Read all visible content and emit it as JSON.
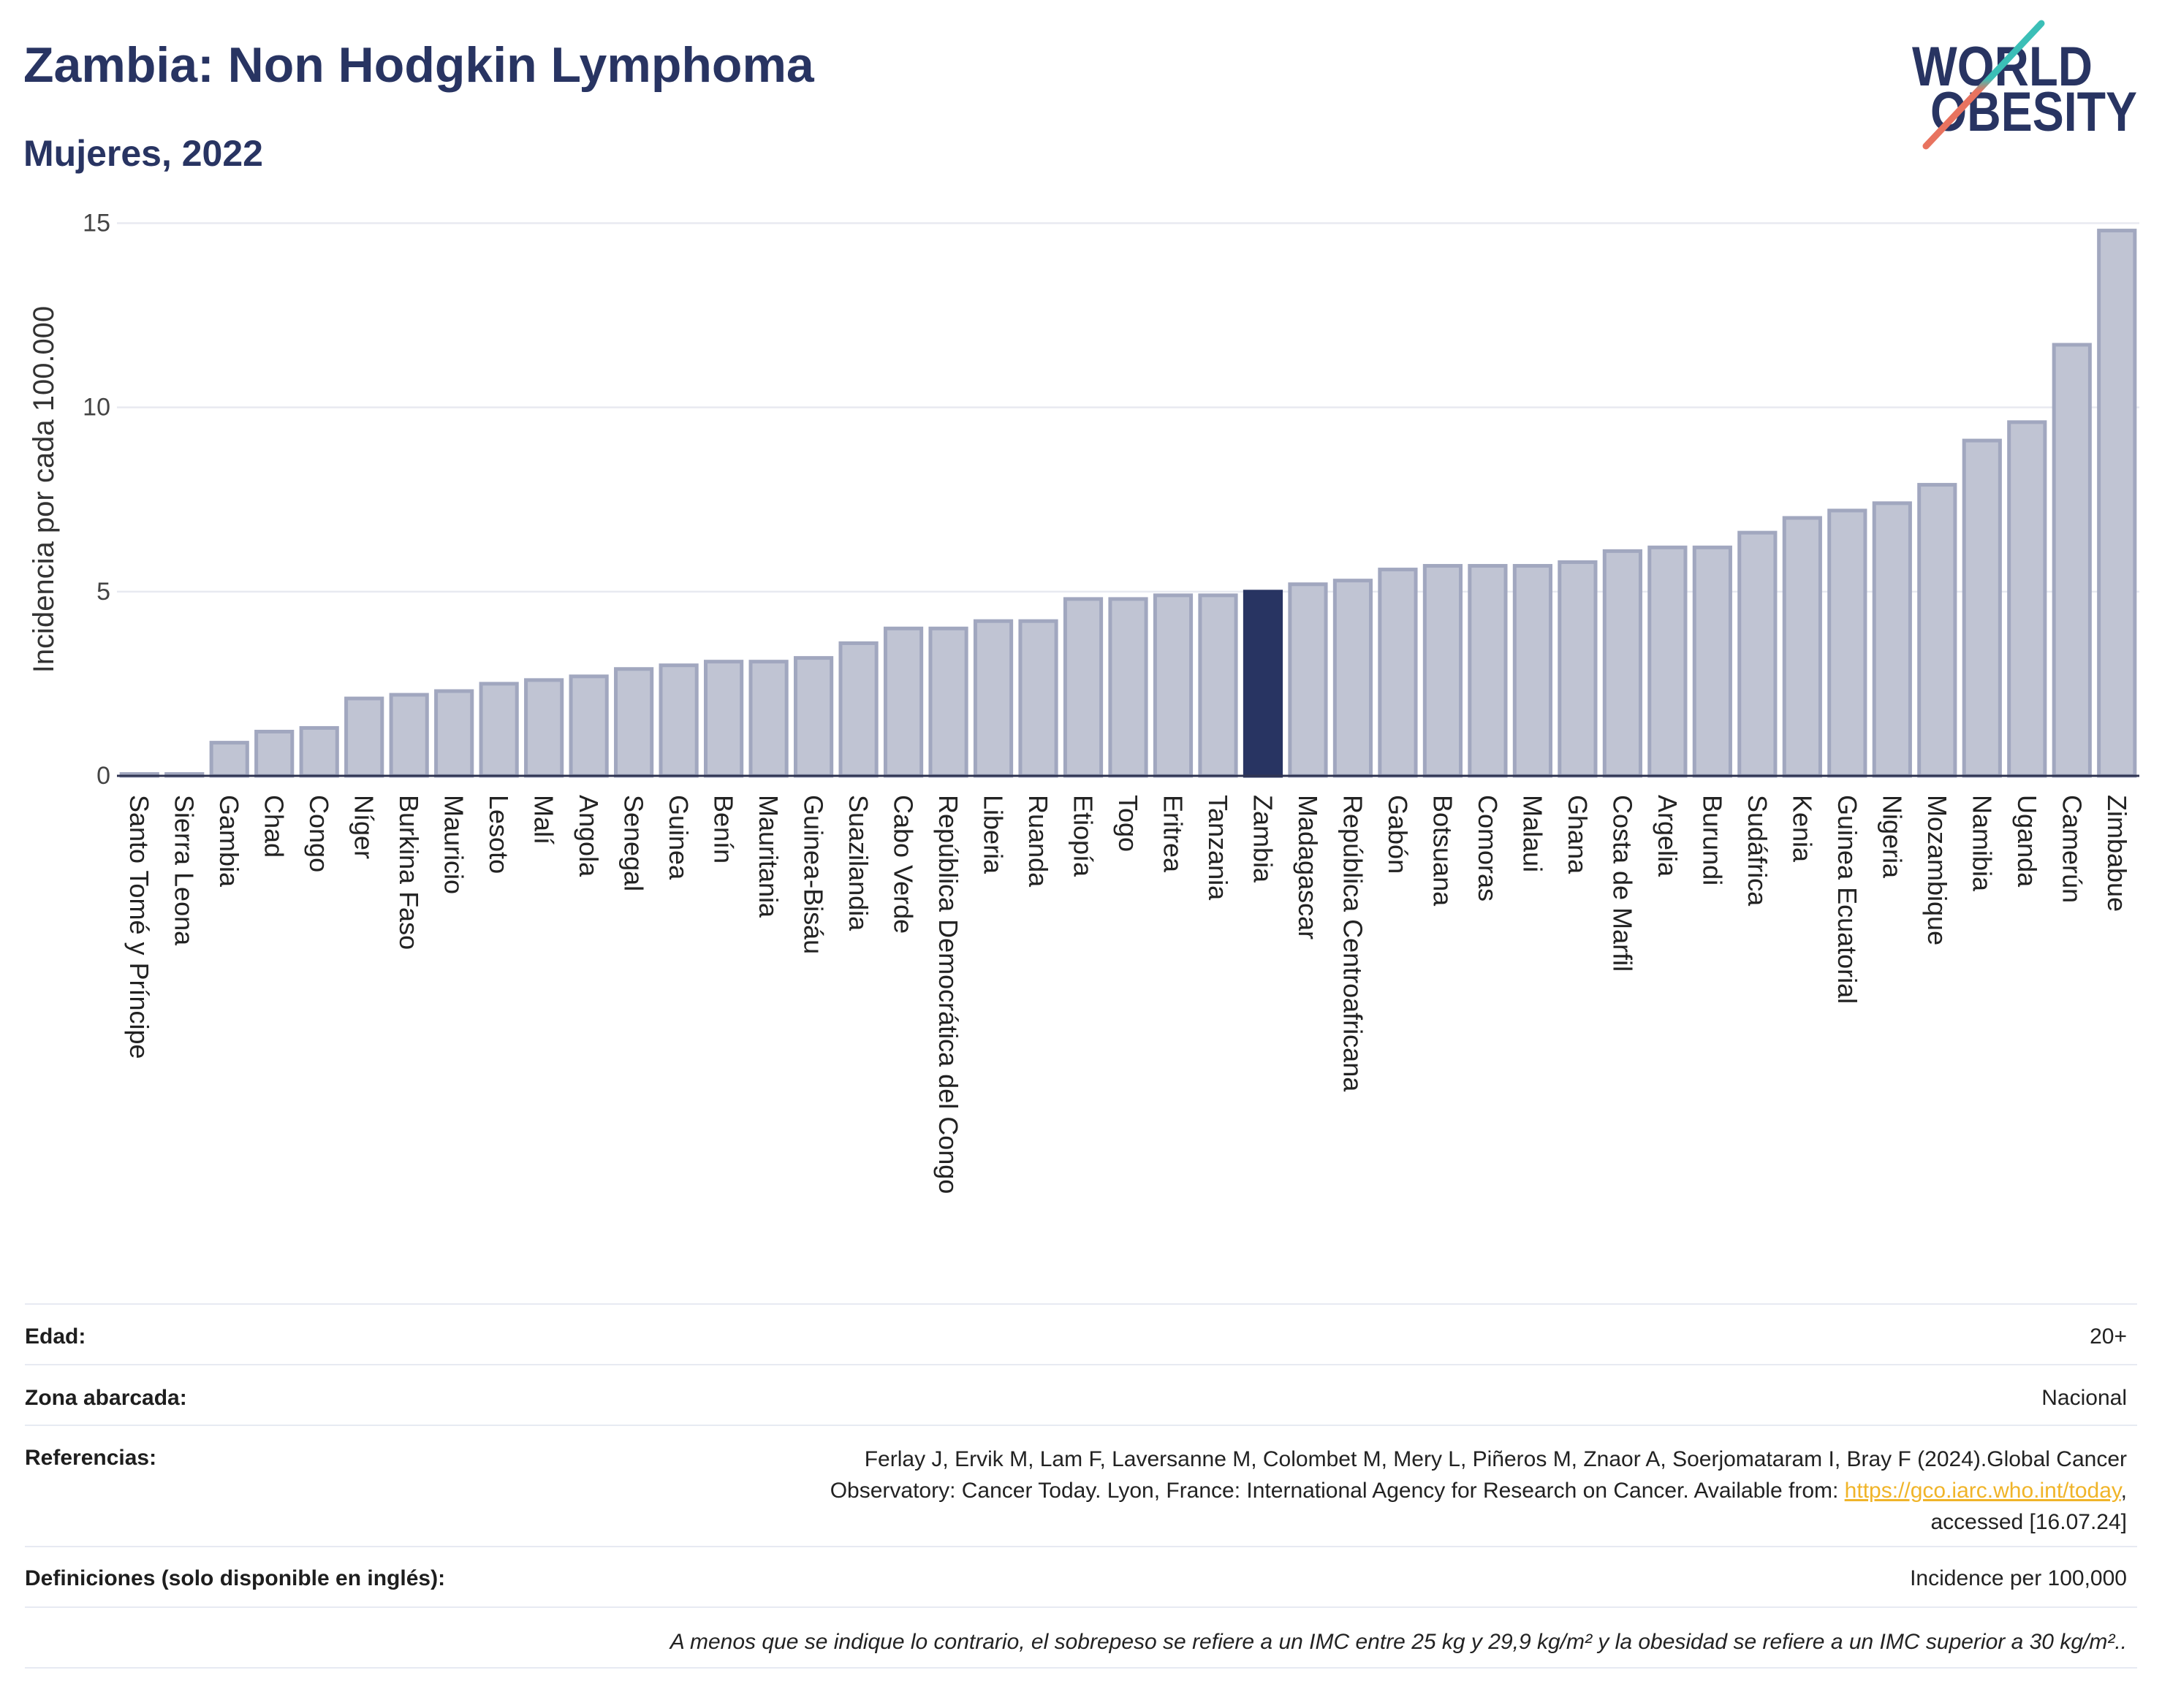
{
  "chart_data": {
    "type": "bar",
    "title": "Zambia: Non Hodgkin Lymphoma",
    "subtitle": "Mujeres, 2022",
    "xlabel": "",
    "ylabel": "Incidencia por cada 100.000",
    "ylim": [
      0,
      15
    ],
    "yticks": [
      0,
      5,
      10,
      15
    ],
    "grid": true,
    "highlight": "Zambia",
    "categories": [
      "Santo Tomé y Príncipe",
      "Sierra Leona",
      "Gambia",
      "Chad",
      "Congo",
      "Níger",
      "Burkina Faso",
      "Mauricio",
      "Lesoto",
      "Malí",
      "Angola",
      "Senegal",
      "Guinea",
      "Benín",
      "Mauritania",
      "Guinea-Bisáu",
      "Suazilandia",
      "Cabo Verde",
      "República Democrática del Congo",
      "Liberia",
      "Ruanda",
      "Etiopía",
      "Togo",
      "Eritrea",
      "Tanzania",
      "Zambia",
      "Madagascar",
      "República Centroafricana",
      "Gabón",
      "Botsuana",
      "Comoras",
      "Malaui",
      "Ghana",
      "Costa de Marfil",
      "Argelia",
      "Burundi",
      "Sudáfrica",
      "Kenia",
      "Guinea Ecuatorial",
      "Nigeria",
      "Mozambique",
      "Namibia",
      "Uganda",
      "Camerún",
      "Zimbabue"
    ],
    "values": [
      0.05,
      0.05,
      0.9,
      1.2,
      1.3,
      2.1,
      2.2,
      2.3,
      2.5,
      2.6,
      2.7,
      2.9,
      3.0,
      3.1,
      3.1,
      3.2,
      3.6,
      4.0,
      4.0,
      4.2,
      4.2,
      4.8,
      4.8,
      4.9,
      4.9,
      5.0,
      5.2,
      5.3,
      5.6,
      5.7,
      5.7,
      5.7,
      5.8,
      6.1,
      6.2,
      6.2,
      6.6,
      7.0,
      7.2,
      7.4,
      7.9,
      9.1,
      9.6,
      11.7,
      14.8
    ]
  },
  "logo": {
    "line_1": "WORLD",
    "line_2": "OBESITY"
  },
  "info": {
    "age": {
      "label": "Edad:",
      "value": "20+"
    },
    "area": {
      "label": "Zona abarcada:",
      "value": "Nacional"
    },
    "references": {
      "label": "Referencias:",
      "line_1": "Ferlay J, Ervik M, Lam F, Laversanne M, Colombet M, Mery L, Piñeros M, Znaor A, Soerjomataram I, Bray F (2024).Global Cancer",
      "line_2": "Observatory: Cancer Today. Lyon, France: International Agency for Research on Cancer. Available from: ",
      "link": "https://gco.iarc.who.int/today",
      "line_2_end": ",",
      "line_3": "accessed [16.07.24]"
    },
    "definitions": {
      "label": "Definiciones (solo disponible en inglés):",
      "value": "Incidence per 100,000"
    },
    "note": "A menos que se indique lo contrario, el sobrepeso se refiere a un IMC entre 25 kg y 29,9 kg/m² y la obesidad se refiere a un IMC superior a 30 kg/m².."
  },
  "colors": {
    "title": "#283462",
    "bar": "#c0c4d3",
    "bar_outline": "#a1a7bf",
    "highlight": "#283462",
    "grid": "#e8eaf1",
    "axis": "#2f3452",
    "link": "#f0b429",
    "logo_teal": "#3bbfb7",
    "logo_salmon": "#e8735f"
  }
}
